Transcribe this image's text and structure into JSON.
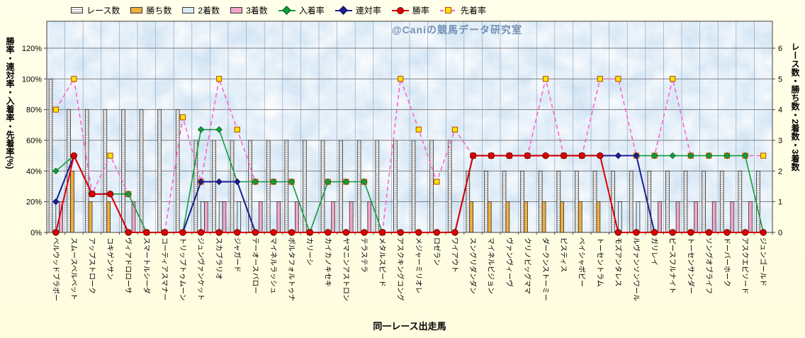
{
  "watermark": "@Caniの競馬データ研究室",
  "legend": [
    {
      "label": "レース数",
      "type": "bar",
      "color": "striped-white"
    },
    {
      "label": "勝ち数",
      "type": "bar",
      "color": "#EFAE3C"
    },
    {
      "label": "2着数",
      "type": "bar",
      "color": "#D8EDF6"
    },
    {
      "label": "3着数",
      "type": "bar",
      "color": "#F2A5C8"
    },
    {
      "label": "入着率",
      "type": "line-diamond",
      "color": "#0FA03C"
    },
    {
      "label": "連対率",
      "type": "line-diamond",
      "color": "#1C1C96"
    },
    {
      "label": "勝率",
      "type": "line-circle",
      "color": "#E00000"
    },
    {
      "label": "先着率",
      "type": "dashed-line-square",
      "color": "#FF5CCC",
      "marker_fill": "#FFE400"
    }
  ],
  "chart_data": {
    "type": "combo-bar-line",
    "title": "",
    "xlabel": "同一レース出走馬",
    "ylabel_left": "勝率・連対率・入着率・先着率(%)",
    "ylabel_right": "レース数・勝ち数・2着数・3着数",
    "ylim_left": [
      0,
      120
    ],
    "ylim_right": [
      0,
      6
    ],
    "yticks_left": [
      "0%",
      "20%",
      "40%",
      "60%",
      "80%",
      "100%",
      "120%"
    ],
    "yticks_right": [
      "0",
      "1",
      "2",
      "3",
      "4",
      "5",
      "6"
    ],
    "grid": true,
    "legend_position": "top",
    "categories": [
      "ベルウッドブラボー",
      "スムースベルベット",
      "アップストローク",
      "コキゲンサン",
      "ヴィアドロローサ",
      "スマートルシーダ",
      "コーティアスマナー",
      "トリップトゥムーン",
      "ジュンヴァンケット",
      "スカブラリオ",
      "ジャガード",
      "テーオースバロー",
      "マイネルラッシュ",
      "ポルタフォルトゥナ",
      "カリーシ",
      "カイカノキセキ",
      "ヤマニンアストロン",
      "テラステラ",
      "メタルスピード",
      "アスクキングコング",
      "メジャーミリオレ",
      "ロゼラン",
      "ワイアウト",
      "スングリダンダン",
      "マイネルビジョン",
      "ヴァンヴィーヴ",
      "クリノビッグママ",
      "ダークンストーミー",
      "ピスティス",
      "ベイシャボビー",
      "トーセントラム",
      "モズアンタレス",
      "ルヴァンソンワール",
      "ガリレイ",
      "ピースフルナイト",
      "トーセンサンダー",
      "ソングオブライフ",
      "ドーバーホーク",
      "アスクエピソード",
      "ジュンゴールド"
    ],
    "bar_series": [
      {
        "id": "races",
        "name": "レース数",
        "axis": "right",
        "pattern": "stripes",
        "color": "#FFFFFF",
        "values": [
          5,
          4,
          4,
          4,
          4,
          4,
          4,
          4,
          3,
          3,
          3,
          3,
          3,
          3,
          3,
          3,
          3,
          3,
          3,
          3,
          3,
          3,
          3,
          2,
          2,
          2,
          2,
          2,
          2,
          2,
          2,
          2,
          2,
          2,
          2,
          2,
          2,
          2,
          2,
          2
        ]
      },
      {
        "id": "wins",
        "name": "勝ち数",
        "axis": "right",
        "color": "#EFAE3C",
        "values": [
          0,
          2,
          1,
          1,
          0,
          0,
          0,
          0,
          0,
          0,
          0,
          0,
          0,
          0,
          0,
          0,
          0,
          0,
          0,
          0,
          0,
          0,
          0,
          1,
          1,
          1,
          1,
          1,
          1,
          1,
          1,
          0,
          0,
          0,
          0,
          0,
          0,
          0,
          0,
          0
        ]
      },
      {
        "id": "seconds",
        "name": "2着数",
        "axis": "right",
        "color": "#D8EDF6",
        "values": [
          1,
          0,
          0,
          0,
          0,
          0,
          0,
          0,
          1,
          1,
          1,
          0,
          0,
          0,
          0,
          0,
          0,
          0,
          0,
          0,
          0,
          0,
          0,
          0,
          0,
          0,
          0,
          0,
          0,
          0,
          0,
          1,
          1,
          0,
          0,
          0,
          0,
          0,
          0,
          0
        ]
      },
      {
        "id": "thirds",
        "name": "3着数",
        "axis": "right",
        "color": "#F2A5C8",
        "values": [
          1,
          0,
          0,
          0,
          1,
          0,
          0,
          0,
          1,
          1,
          0,
          1,
          1,
          1,
          0,
          1,
          1,
          1,
          0,
          0,
          0,
          0,
          0,
          0,
          0,
          0,
          0,
          0,
          0,
          0,
          0,
          0,
          0,
          1,
          1,
          1,
          1,
          1,
          1,
          0
        ]
      }
    ],
    "line_series": [
      {
        "id": "place-rate",
        "name": "入着率",
        "axis": "left",
        "marker": "diamond",
        "color": "#0FA03C",
        "marker_stroke": "#0B4F1E",
        "width": 1.6,
        "values": [
          40,
          50,
          25,
          25,
          25,
          0,
          0,
          0,
          67,
          67,
          33,
          33,
          33,
          33,
          0,
          33,
          33,
          33,
          0,
          0,
          0,
          0,
          0,
          50,
          50,
          50,
          50,
          50,
          50,
          50,
          50,
          50,
          50,
          50,
          50,
          50,
          50,
          50,
          50,
          0
        ]
      },
      {
        "id": "rentai-rate",
        "name": "連対率",
        "axis": "left",
        "marker": "diamond",
        "color": "#1C1C96",
        "marker_stroke": "#11114F",
        "width": 2,
        "values": [
          20,
          50,
          25,
          25,
          0,
          0,
          0,
          0,
          33,
          33,
          33,
          0,
          0,
          0,
          0,
          0,
          0,
          0,
          0,
          0,
          0,
          0,
          0,
          50,
          50,
          50,
          50,
          50,
          50,
          50,
          50,
          50,
          50,
          0,
          0,
          0,
          0,
          0,
          0,
          0
        ]
      },
      {
        "id": "win-rate",
        "name": "勝率",
        "axis": "left",
        "marker": "circle",
        "color": "#E00000",
        "marker_stroke": "#660000",
        "width": 2,
        "values": [
          0,
          50,
          25,
          25,
          0,
          0,
          0,
          0,
          0,
          0,
          0,
          0,
          0,
          0,
          0,
          0,
          0,
          0,
          0,
          0,
          0,
          0,
          0,
          50,
          50,
          50,
          50,
          50,
          50,
          50,
          50,
          0,
          0,
          0,
          0,
          0,
          0,
          0,
          0,
          0
        ]
      },
      {
        "id": "sensaku-rate",
        "name": "先着率",
        "axis": "left",
        "marker": "square",
        "color": "#FF5CCC",
        "marker_fill": "#FFE400",
        "marker_stroke": "#B34700",
        "dashed": true,
        "width": 1.5,
        "values": [
          80,
          100,
          25,
          50,
          25,
          0,
          0,
          75,
          33,
          100,
          67,
          33,
          33,
          33,
          0,
          33,
          33,
          33,
          0,
          100,
          67,
          33,
          67,
          50,
          50,
          50,
          50,
          100,
          50,
          50,
          100,
          100,
          50,
          50,
          100,
          50,
          50,
          50,
          50,
          50
        ]
      }
    ]
  }
}
